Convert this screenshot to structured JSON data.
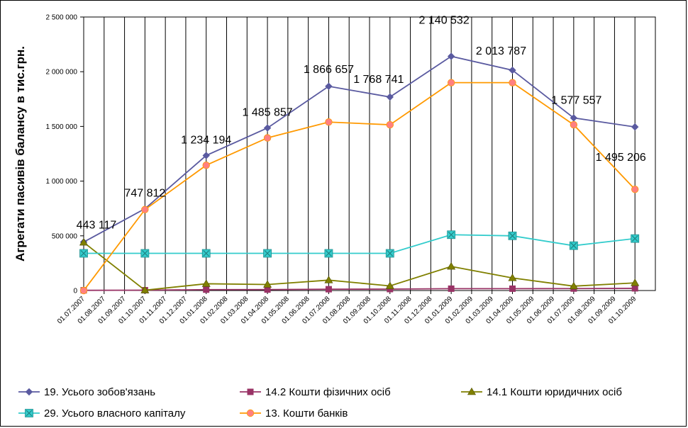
{
  "chart_data": {
    "type": "line",
    "ylabel": "Агрегати пасивів балансу в тис.грн.",
    "xlabel": "",
    "ylim": [
      0,
      2500000
    ],
    "yticks": [
      0,
      500000,
      1000000,
      1500000,
      2000000,
      2500000
    ],
    "ytick_labels": [
      "0",
      "500 000",
      "1 000 000",
      "1 500 000",
      "2 000 000",
      "2 500 000"
    ],
    "grid": "vertical",
    "legend_position": "bottom",
    "categories": [
      "01.07.2007",
      "01.08.2007",
      "01.09.2007",
      "01.10.2007",
      "01.11.2007",
      "01.12.2007",
      "01.01.2008",
      "01.02.2008",
      "01.03.2008",
      "01.04.2008",
      "01.05.2008",
      "01.06.2008",
      "01.07.2008",
      "01.08.2008",
      "01.09.2008",
      "01.10.2008",
      "01.11.2008",
      "01.12.2008",
      "01.01.2009",
      "01.02.2009",
      "01.03.2009",
      "01.04.2009",
      "01.05.2009",
      "01.06.2009",
      "01.07.2009",
      "01.08.2009",
      "01.09.2009",
      "01.10.2009"
    ],
    "series": [
      {
        "name": "19. Усього зобов'язань",
        "color": "#5A5AA0",
        "marker": "diamond",
        "points": [
          [
            0,
            443117
          ],
          [
            3,
            747812
          ],
          [
            6,
            1234194
          ],
          [
            9,
            1485857
          ],
          [
            12,
            1866657
          ],
          [
            15,
            1768741
          ],
          [
            18,
            2140532
          ],
          [
            21,
            2013787
          ],
          [
            24,
            1577557
          ],
          [
            27,
            1495206
          ]
        ],
        "labels": [
          "443 117",
          "747 812",
          "1 234 194",
          "1 485 857",
          "1 866 657",
          "1 768 741",
          "2 140 532",
          "2 013 787",
          "1 577 557",
          "1 495 206"
        ]
      },
      {
        "name": "14.2 Кошти фізичних осіб",
        "color": "#993366",
        "marker": "square",
        "points": [
          [
            0,
            2000
          ],
          [
            3,
            3000
          ],
          [
            6,
            8000
          ],
          [
            9,
            9000
          ],
          [
            12,
            12000
          ],
          [
            15,
            13000
          ],
          [
            18,
            17000
          ],
          [
            21,
            17000
          ],
          [
            24,
            18000
          ],
          [
            27,
            20000
          ]
        ]
      },
      {
        "name": "14.1 Кошти юридичних осіб",
        "color": "#808000",
        "marker": "triangle",
        "points": [
          [
            0,
            440000
          ],
          [
            3,
            3000
          ],
          [
            6,
            62000
          ],
          [
            9,
            55000
          ],
          [
            12,
            95000
          ],
          [
            15,
            42000
          ],
          [
            18,
            220000
          ],
          [
            21,
            115000
          ],
          [
            24,
            40000
          ],
          [
            27,
            70000
          ]
        ]
      },
      {
        "name": "29. Усього власного капіталу",
        "color": "#33CCCC",
        "marker": "boxx",
        "points": [
          [
            0,
            340000
          ],
          [
            3,
            340000
          ],
          [
            6,
            340000
          ],
          [
            9,
            340000
          ],
          [
            12,
            340000
          ],
          [
            15,
            340000
          ],
          [
            18,
            510000
          ],
          [
            21,
            500000
          ],
          [
            24,
            410000
          ],
          [
            27,
            475000
          ]
        ]
      },
      {
        "name": "13. Кошти банків",
        "color": "#FF9900",
        "marker": "circle",
        "points": [
          [
            0,
            0
          ],
          [
            3,
            740000
          ],
          [
            6,
            1145000
          ],
          [
            9,
            1395000
          ],
          [
            12,
            1540000
          ],
          [
            15,
            1515000
          ],
          [
            18,
            1900000
          ],
          [
            21,
            1900000
          ],
          [
            24,
            1515000
          ],
          [
            27,
            925000
          ]
        ]
      }
    ]
  }
}
